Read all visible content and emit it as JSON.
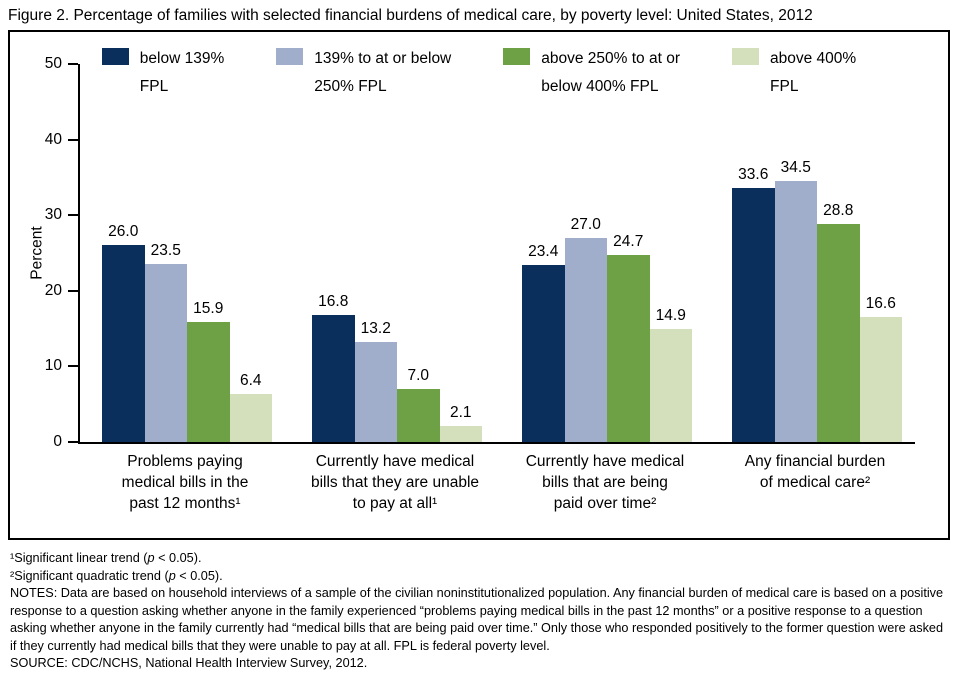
{
  "figure_title": "Figure 2. Percentage of families with selected financial burdens of medical care, by poverty level: United States, 2012",
  "chart_data": {
    "type": "bar",
    "title": "Figure 2. Percentage of families with selected financial burdens of medical care, by poverty level: United States, 2012",
    "xlabel": "",
    "ylabel": "Percent",
    "ylim": [
      0,
      50
    ],
    "yticks": [
      0,
      10,
      20,
      30,
      40,
      50
    ],
    "grid": false,
    "legend_position": "top",
    "value_labels": true,
    "categories": [
      {
        "label": "Problems paying medical bills in the past 12 months¹",
        "lines": [
          "Problems paying",
          "medical bills in the",
          "past 12 months¹"
        ]
      },
      {
        "label": "Currently have medical bills that they are unable to pay at all¹",
        "lines": [
          "Currently have medical",
          "bills that they are unable",
          "to pay at all¹"
        ]
      },
      {
        "label": "Currently have medical bills that are being paid over time²",
        "lines": [
          "Currently have medical",
          "bills that are being",
          "paid over time²"
        ]
      },
      {
        "label": "Any financial burden of medical care²",
        "lines": [
          "Any financial burden",
          "of medical care²"
        ]
      }
    ],
    "series": [
      {
        "name": "below 139% FPL",
        "legend_lines": [
          "below 139%",
          "FPL"
        ],
        "color": "#0A2F5C",
        "values": [
          26.0,
          16.8,
          23.4,
          33.6
        ]
      },
      {
        "name": "139% to at or below 250% FPL",
        "legend_lines": [
          "139% to at or below",
          "250% FPL"
        ],
        "color": "#A0AECC",
        "values": [
          23.5,
          13.2,
          27.0,
          34.5
        ]
      },
      {
        "name": "above 250% to at or below 400% FPL",
        "legend_lines": [
          "above 250% to at or",
          "below 400% FPL"
        ],
        "color": "#6EA046",
        "values": [
          15.9,
          7.0,
          24.7,
          28.8
        ]
      },
      {
        "name": "above 400% FPL",
        "legend_lines": [
          "above 400%",
          "FPL"
        ],
        "color": "#D4E0BC",
        "values": [
          6.4,
          2.1,
          14.9,
          16.6
        ]
      }
    ]
  },
  "footnotes": [
    {
      "pre": "¹Significant linear trend (",
      "italic": "p",
      "post": " < 0.05)."
    },
    {
      "pre": "²Significant quadratic trend (",
      "italic": "p",
      "post": " < 0.05)."
    }
  ],
  "notes": "NOTES: Data are based on household interviews of a sample of the civilian noninstitutionalized population. Any financial burden of medical care is based on a positive response to a question asking whether anyone in the family experienced “problems paying medical bills in the past 12 months” or a positive response to a question asking whether anyone in the family currently had “medical bills that are being paid over time.” Only those who responded positively to the former question were asked if they currently had medical bills that they were unable to pay at all. FPL is federal poverty level.",
  "source": "SOURCE: CDC/NCHS, National Health Interview Survey, 2012."
}
